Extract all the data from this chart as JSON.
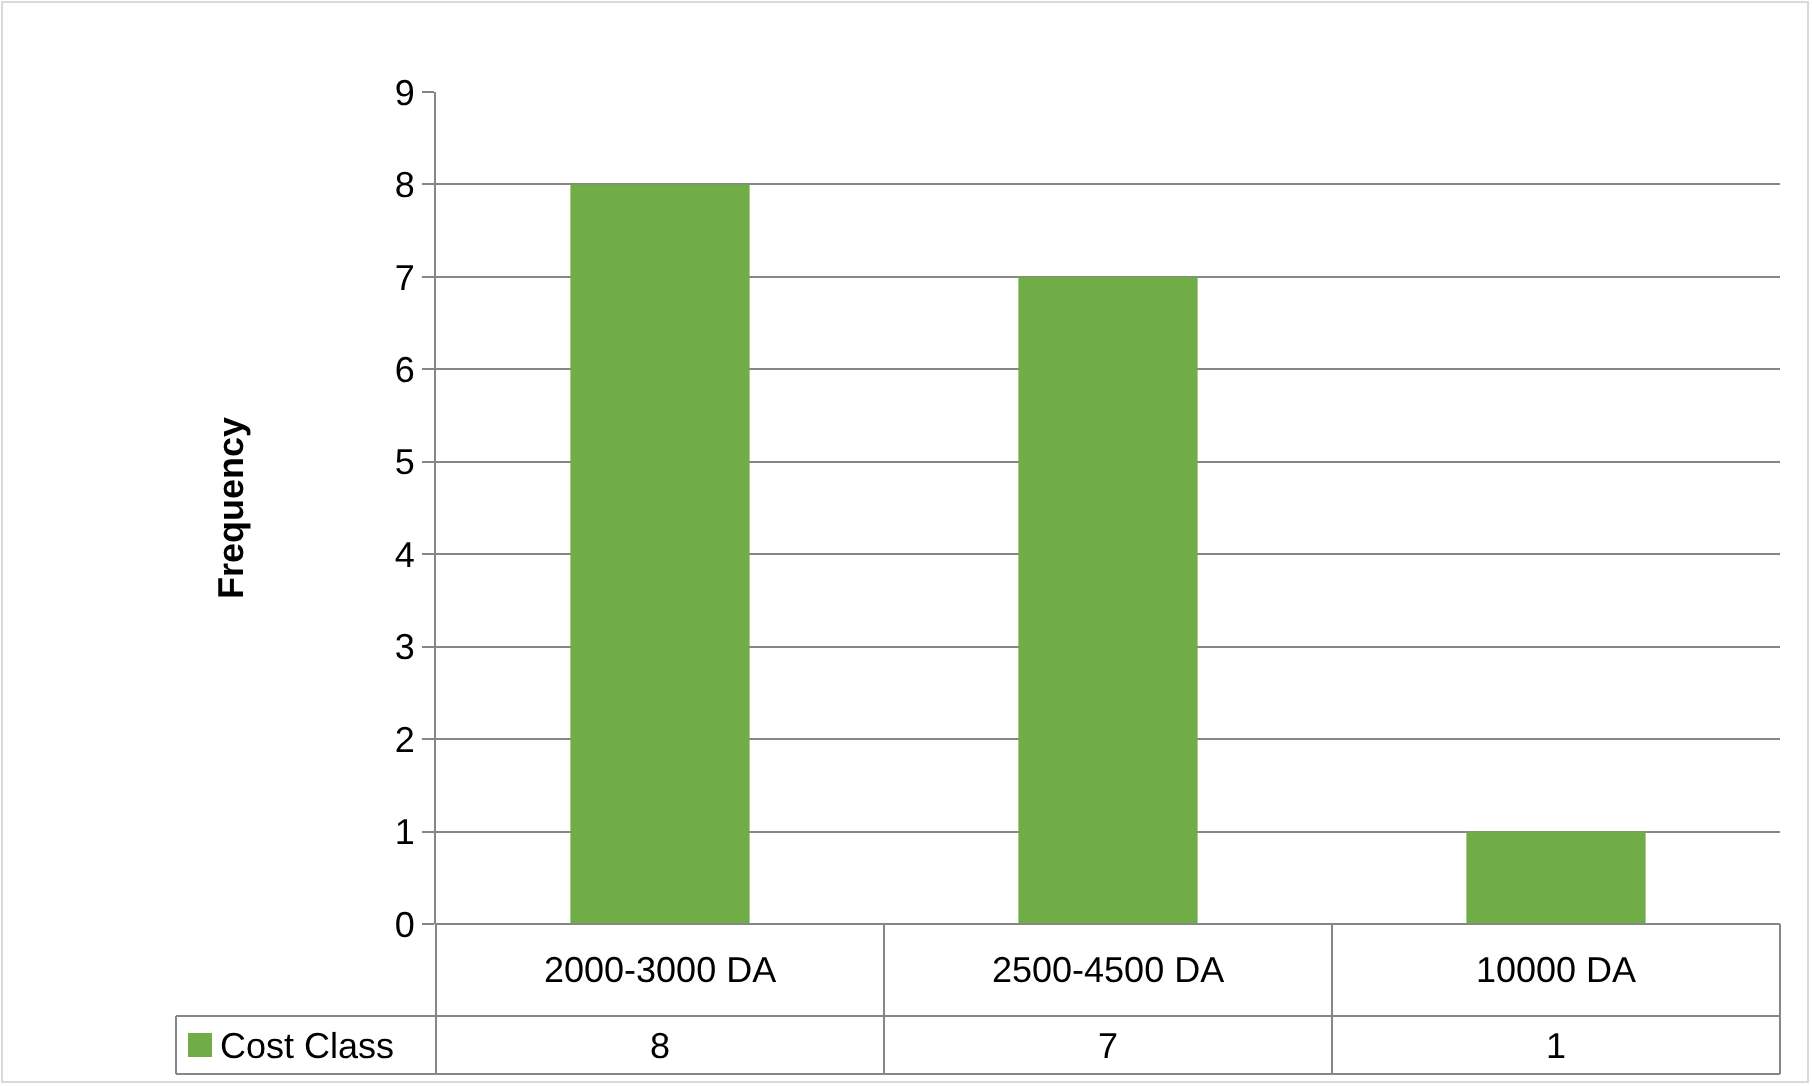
{
  "chart_data": {
    "type": "bar",
    "ylabel": "Frequency",
    "categories": [
      "2000-3000 DA",
      "2500-4500 DA",
      "10000 DA"
    ],
    "series": [
      {
        "name": "Cost Class",
        "color": "#70ad47",
        "values": [
          8,
          7,
          1
        ]
      }
    ],
    "ylim": [
      0,
      9
    ],
    "yticks": [
      0,
      1,
      2,
      3,
      4,
      5,
      6,
      7,
      8,
      9
    ],
    "grid": "y",
    "data_labels": true,
    "legend": "bottom left"
  }
}
